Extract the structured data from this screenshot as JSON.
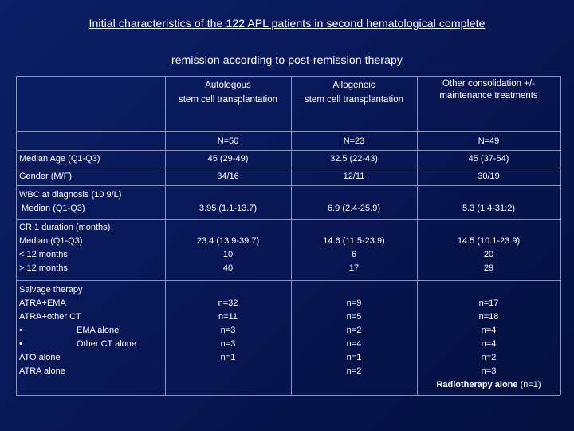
{
  "title": {
    "line1": "Initial characteristics of the 122 APL patients in second hematological complete",
    "line2": "remission according to post-remission therapy"
  },
  "columns": [
    {
      "header_line1": "Autologous",
      "header_line2": "stem cell transplantation",
      "n": "N=50"
    },
    {
      "header_line1": "Allogeneic",
      "header_line2": "stem cell transplantation",
      "n": "N=23"
    },
    {
      "header_line1": "Other consolidation +/-",
      "header_line2": "maintenance treatments",
      "n": "N=49"
    }
  ],
  "rows": {
    "age": {
      "label": "Median Age (Q1-Q3)",
      "values": [
        "45 (29-49)",
        "32.5 (22-43)",
        "45 (37-54)"
      ]
    },
    "gender": {
      "label": "Gender (M/F)",
      "values": [
        "34/16",
        "12/11",
        "30/19"
      ]
    },
    "wbc": {
      "label_line1": "WBC at diagnosis (10 9/L)",
      "label_line2": " Median (Q1-Q3)",
      "values": [
        "3.95 (1.1-13.7)",
        "6.9 (2.4-25.9)",
        "5.3 (1.4-31.2)"
      ]
    },
    "cr1": {
      "labels": [
        "CR 1 duration (months)",
        "Median (Q1-Q3)",
        "< 12 months",
        "> 12 months"
      ],
      "col1": [
        "23.4 (13.9-39.7)",
        "10",
        "40"
      ],
      "col2": [
        "14.6 (11.5-23.9)",
        "6",
        "17"
      ],
      "col3": [
        "14.5 (10.1-23.9)",
        "20",
        "29"
      ]
    },
    "salvage": {
      "labels": [
        "Salvage therapy",
        "ATRA+EMA",
        "ATRA+other CT",
        "EMA alone",
        "Other CT alone",
        "ATO alone",
        "ATRA alone"
      ],
      "bullet": "•",
      "col1": [
        "n=32",
        "n=11",
        "n=3",
        "n=3",
        "n=1"
      ],
      "col2": [
        "n=9",
        "n=5",
        "n=2",
        "n=4",
        "n=1",
        "n=2"
      ],
      "col3": [
        "n=17",
        "n=18",
        "n=4",
        "n=4",
        "n=2",
        "n=3"
      ],
      "col3_extra_strong": "Radiotherapy alone",
      "col3_extra_rest": " (n=1)"
    }
  }
}
